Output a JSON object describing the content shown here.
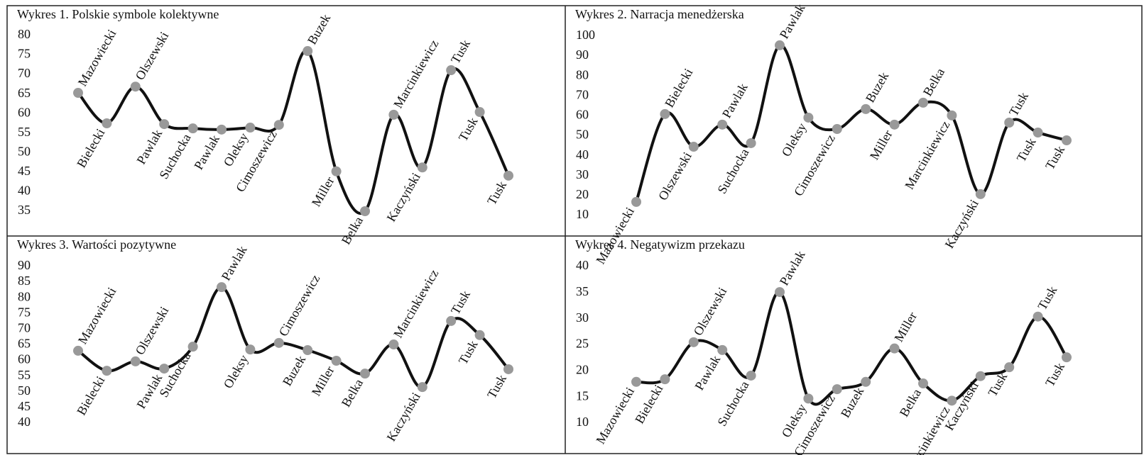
{
  "chart_data": [
    {
      "type": "line",
      "title": "Wykres 1. Polskie symbole kolektywne",
      "categories": [
        "Mazowiecki",
        "Bielecki",
        "Olszewski",
        "Pawlak",
        "Suchocka",
        "Pawlak",
        "Oleksy",
        "Cimoszewicz",
        "Buzek",
        "Miller",
        "Belka",
        "Marcinkiewicz",
        "Kaczyński",
        "Tusk",
        "Tusk",
        "Tusk"
      ],
      "values": [
        65.3,
        57.5,
        66.9,
        57.3,
        56.2,
        55.9,
        56.4,
        57.1,
        76,
        45.2,
        35,
        59.7,
        46.2,
        71.1,
        60.4,
        44.1
      ],
      "color": "#111111",
      "marker_color": "#999999",
      "ylim": [
        35,
        80
      ],
      "yticks": [
        35,
        40,
        45,
        50,
        55,
        60,
        65,
        70,
        75,
        80
      ]
    },
    {
      "type": "line",
      "title": "Wykres 2. Narracja menedżerska",
      "categories": [
        "Mazowiecki",
        "Bielecki",
        "Olszewski",
        "Pawlak",
        "Suchocka",
        "Pawlak",
        "Oleksy",
        "Cimoszewicz",
        "Buzek",
        "Miller",
        "Belka",
        "Marcinkiewicz",
        "Kaczyński",
        "Tusk",
        "Tusk",
        "Tusk"
      ],
      "values": [
        16.8,
        60.9,
        44.5,
        55.6,
        46.3,
        95.4,
        59.1,
        53.4,
        63.4,
        55.6,
        66.6,
        60.2,
        20.7,
        56.6,
        51.6,
        47.7
      ],
      "color": "#111111",
      "marker_color": "#999999",
      "ylim": [
        10,
        100
      ],
      "yticks": [
        10,
        20,
        30,
        40,
        50,
        60,
        70,
        80,
        90,
        100
      ]
    },
    {
      "type": "line",
      "title": "Wykres 3. Wartości pozytywne",
      "categories": [
        "Mazowiecki",
        "Bielecki",
        "Olszewski",
        "Pawlak",
        "Suchocka",
        "Pawlak",
        "Oleksy",
        "Cimoszewicz",
        "Buzek",
        "Miller",
        "Belka",
        "Marcinkiewicz",
        "Kaczyński",
        "Tusk",
        "Tusk",
        "Tusk"
      ],
      "values": [
        63.1,
        56.7,
        59.7,
        57.4,
        64.4,
        83.4,
        63.5,
        65.6,
        63.3,
        59.9,
        55.8,
        65.1,
        51.5,
        72.6,
        68.1,
        57.2
      ],
      "color": "#111111",
      "marker_color": "#999999",
      "ylim": [
        40,
        90
      ],
      "yticks": [
        40,
        45,
        50,
        55,
        60,
        65,
        70,
        75,
        80,
        85,
        90
      ]
    },
    {
      "type": "line",
      "title": "Wykres 4. Negatywizm przekazu",
      "categories": [
        "Mazowiecki",
        "Bielecki",
        "Olszewski",
        "Pawlak",
        "Suchocka",
        "Pawlak",
        "Oleksy",
        "Cimoszewicz",
        "Buzek",
        "Miller",
        "Belka",
        "Marcinkiewicz",
        "Kaczyński",
        "Tusk",
        "Tusk",
        "Tusk"
      ],
      "values": [
        17.9,
        18.4,
        25.5,
        24,
        19.1,
        35.1,
        14.7,
        16.5,
        17.9,
        24.3,
        17.6,
        14.3,
        19,
        20.7,
        30.4,
        22.6
      ],
      "color": "#111111",
      "marker_color": "#999999",
      "ylim": [
        10,
        40
      ],
      "yticks": [
        10,
        15,
        20,
        25,
        30,
        35,
        40
      ]
    }
  ]
}
